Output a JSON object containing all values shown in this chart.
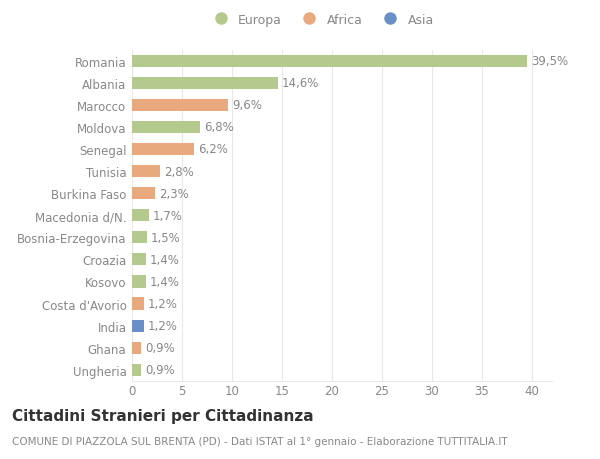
{
  "categories": [
    "Ungheria",
    "Ghana",
    "India",
    "Costa d'Avorio",
    "Kosovo",
    "Croazia",
    "Bosnia-Erzegovina",
    "Macedonia d/N.",
    "Burkina Faso",
    "Tunisia",
    "Senegal",
    "Moldova",
    "Marocco",
    "Albania",
    "Romania"
  ],
  "values": [
    0.9,
    0.9,
    1.2,
    1.2,
    1.4,
    1.4,
    1.5,
    1.7,
    2.3,
    2.8,
    6.2,
    6.8,
    9.6,
    14.6,
    39.5
  ],
  "labels": [
    "0,9%",
    "0,9%",
    "1,2%",
    "1,2%",
    "1,4%",
    "1,4%",
    "1,5%",
    "1,7%",
    "2,3%",
    "2,8%",
    "6,2%",
    "6,8%",
    "9,6%",
    "14,6%",
    "39,5%"
  ],
  "colors": [
    "#b5c98e",
    "#e8a97e",
    "#6a8fc8",
    "#e8a97e",
    "#b5c98e",
    "#b5c98e",
    "#b5c98e",
    "#b5c98e",
    "#e8a97e",
    "#e8a97e",
    "#e8a97e",
    "#b5c98e",
    "#e8a97e",
    "#b5c98e",
    "#b5c98e"
  ],
  "legend_labels": [
    "Europa",
    "Africa",
    "Asia"
  ],
  "legend_colors": [
    "#b5c98e",
    "#e8a97e",
    "#6a8fc8"
  ],
  "title": "Cittadini Stranieri per Cittadinanza",
  "subtitle": "COMUNE DI PIAZZOLA SUL BRENTA (PD) - Dati ISTAT al 1° gennaio - Elaborazione TUTTITALIA.IT",
  "xlim": [
    0,
    42
  ],
  "xticks": [
    0,
    5,
    10,
    15,
    20,
    25,
    30,
    35,
    40
  ],
  "background_color": "#ffffff",
  "grid_color": "#e8e8e8",
  "bar_height": 0.55,
  "label_fontsize": 8.5,
  "tick_fontsize": 8.5,
  "title_fontsize": 11,
  "subtitle_fontsize": 7.5
}
